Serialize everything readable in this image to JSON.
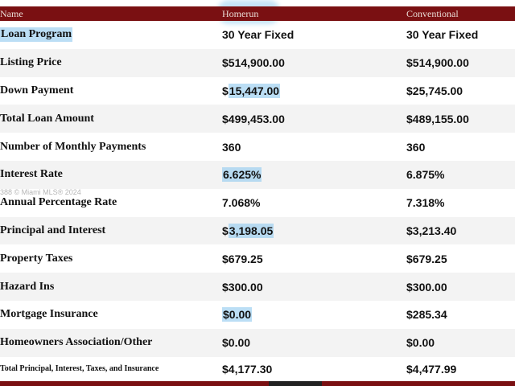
{
  "header": {
    "col_name": "Name",
    "col_homerun": "Homerun",
    "col_conventional": "Conventional"
  },
  "watermark": "388 © Miami MLS® 2024",
  "rows": [
    {
      "label": "Loan Program",
      "homerun": "30 Year Fixed",
      "conventional": "30 Year Fixed"
    },
    {
      "label": "Listing Price",
      "homerun": "$514,900.00",
      "conventional": "$514,900.00"
    },
    {
      "label": "Down Payment",
      "homerun_prefix": "$",
      "homerun_hl": "15,447.00",
      "conventional": "$25,745.00"
    },
    {
      "label": "Total Loan Amount",
      "homerun": "$499,453.00",
      "conventional": "$489,155.00"
    },
    {
      "label": "Number of Monthly Payments",
      "homerun": "360",
      "conventional": "360"
    },
    {
      "label": "Interest Rate",
      "homerun_hl": "6.625%",
      "conventional": "6.875%"
    },
    {
      "label": "Annual Percentage Rate",
      "homerun": "7.068%",
      "conventional": "7.318%"
    },
    {
      "label": "Principal and Interest",
      "homerun_prefix": "$",
      "homerun_hl": "3,198.05",
      "conventional": "$3,213.40"
    },
    {
      "label": "Property Taxes",
      "homerun": "$679.25",
      "conventional": "$679.25"
    },
    {
      "label": "Hazard Ins",
      "homerun": "$300.00",
      "conventional": "$300.00"
    },
    {
      "label": "Mortgage Insurance",
      "homerun_hl": "$0.00",
      "conventional": "$285.34"
    },
    {
      "label": "Homeowners Association/Other",
      "homerun": "$0.00",
      "conventional": "$0.00"
    },
    {
      "label": "Total Principal, Interest, Taxes, and Insurance",
      "homerun": "$4,177.30",
      "conventional": "$4,477.99"
    }
  ]
}
